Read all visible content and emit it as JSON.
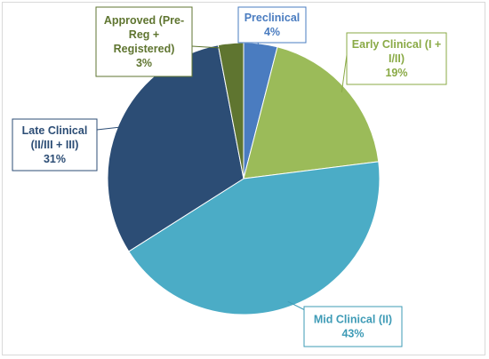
{
  "chart_data": {
    "type": "pie",
    "title": "",
    "slices": [
      {
        "label_lines": [
          "Preclinical",
          "4%"
        ],
        "value": 4,
        "color": "#4a7cc0"
      },
      {
        "label_lines": [
          "Early Clinical (I +",
          "I/II)",
          "19%"
        ],
        "value": 19,
        "color": "#9bbb59"
      },
      {
        "label_lines": [
          "Mid Clinical (II)",
          "43%"
        ],
        "value": 43,
        "color": "#4bacc6"
      },
      {
        "label_lines": [
          "Late Clinical",
          "(II/III + III)",
          "31%"
        ],
        "value": 31,
        "color": "#2c4d75"
      },
      {
        "label_lines": [
          "Approved (Pre-",
          "Reg +",
          "Registered)",
          "3%"
        ],
        "value": 3,
        "color": "#5f7530"
      }
    ],
    "legend": "none",
    "label_style": "callout"
  }
}
